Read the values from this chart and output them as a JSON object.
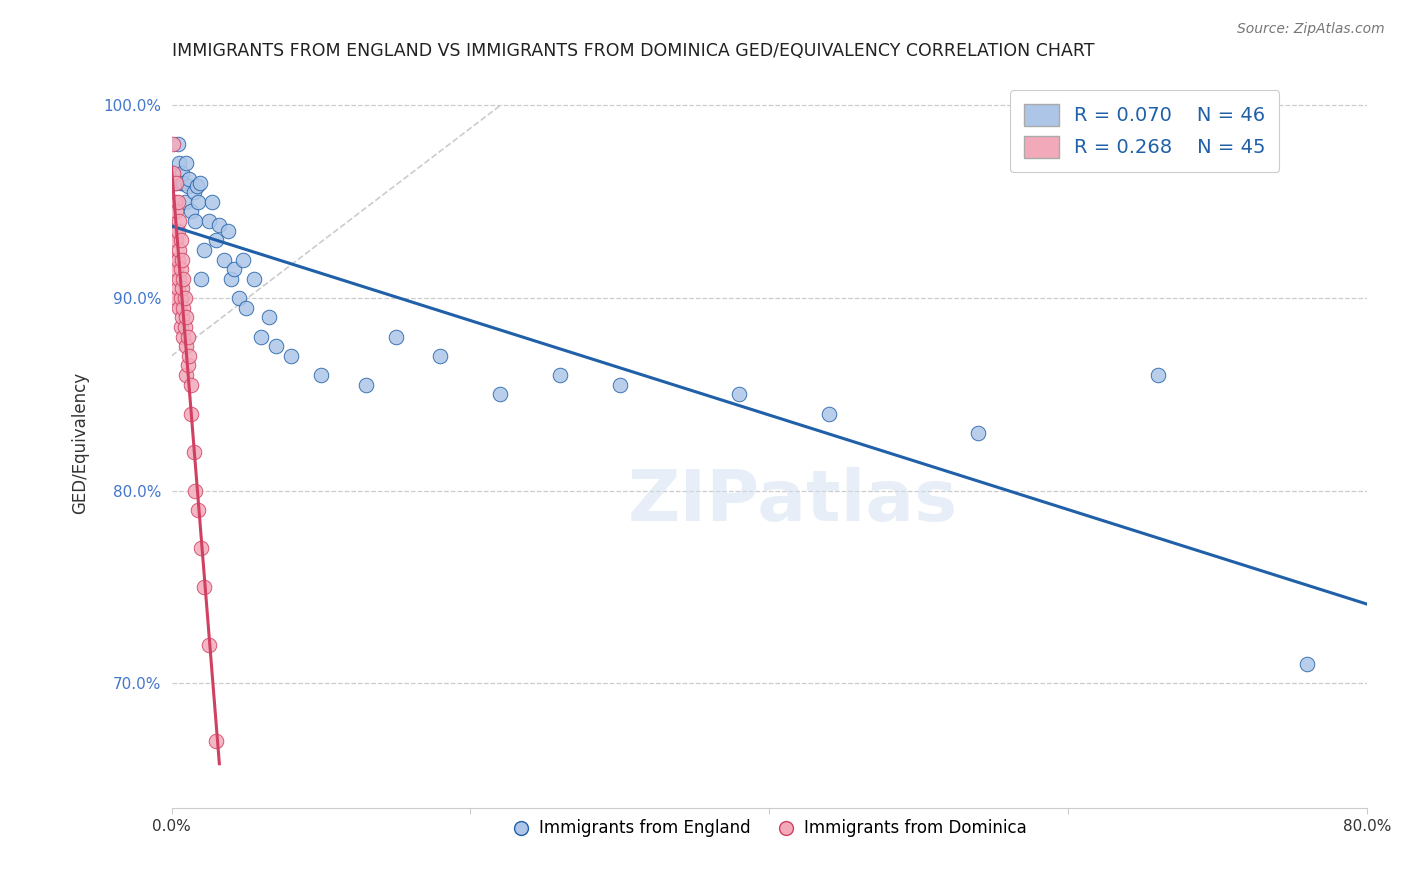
{
  "title": "IMMIGRANTS FROM ENGLAND VS IMMIGRANTS FROM DOMINICA GED/EQUIVALENCY CORRELATION CHART",
  "source": "Source: ZipAtlas.com",
  "ylabel": "GED/Equivalency",
  "xlim": [
    0.0,
    0.8
  ],
  "ylim": [
    0.635,
    1.015
  ],
  "xticks": [
    0.0,
    0.2,
    0.4,
    0.6,
    0.8
  ],
  "xticklabels": [
    "0.0%",
    "",
    "",
    "",
    "80.0%"
  ],
  "yticks": [
    0.7,
    0.8,
    0.9,
    1.0
  ],
  "yticklabels": [
    "70.0%",
    "80.0%",
    "90.0%",
    "100.0%"
  ],
  "legend_r_england": "R = 0.070",
  "legend_n_england": "N = 46",
  "legend_r_dominica": "R = 0.268",
  "legend_n_dominica": "N = 45",
  "england_color": "#adc6e8",
  "dominica_color": "#f2aabb",
  "england_line_color": "#2060a8",
  "dominica_line_color": "#d04060",
  "grid_color": "#cccccc",
  "background_color": "#ffffff",
  "england_x": [
    0.002,
    0.004,
    0.005,
    0.006,
    0.007,
    0.008,
    0.009,
    0.01,
    0.011,
    0.012,
    0.013,
    0.015,
    0.016,
    0.017,
    0.018,
    0.019,
    0.02,
    0.022,
    0.025,
    0.027,
    0.03,
    0.032,
    0.035,
    0.038,
    0.04,
    0.042,
    0.045,
    0.048,
    0.05,
    0.055,
    0.06,
    0.065,
    0.07,
    0.08,
    0.1,
    0.13,
    0.15,
    0.18,
    0.22,
    0.26,
    0.3,
    0.38,
    0.44,
    0.54,
    0.66,
    0.76
  ],
  "england_y": [
    0.96,
    0.98,
    0.97,
    0.96,
    0.965,
    0.96,
    0.95,
    0.97,
    0.958,
    0.962,
    0.945,
    0.955,
    0.94,
    0.958,
    0.95,
    0.96,
    0.91,
    0.925,
    0.94,
    0.95,
    0.93,
    0.938,
    0.92,
    0.935,
    0.91,
    0.915,
    0.9,
    0.92,
    0.895,
    0.91,
    0.88,
    0.89,
    0.875,
    0.87,
    0.86,
    0.855,
    0.88,
    0.87,
    0.85,
    0.86,
    0.855,
    0.85,
    0.84,
    0.83,
    0.86,
    0.71
  ],
  "dominica_x": [
    0.001,
    0.001,
    0.002,
    0.002,
    0.002,
    0.003,
    0.003,
    0.003,
    0.003,
    0.003,
    0.004,
    0.004,
    0.004,
    0.004,
    0.005,
    0.005,
    0.005,
    0.005,
    0.006,
    0.006,
    0.006,
    0.006,
    0.007,
    0.007,
    0.007,
    0.008,
    0.008,
    0.008,
    0.009,
    0.009,
    0.01,
    0.01,
    0.01,
    0.011,
    0.011,
    0.012,
    0.013,
    0.013,
    0.015,
    0.016,
    0.018,
    0.02,
    0.022,
    0.025,
    0.03
  ],
  "dominica_y": [
    0.98,
    0.965,
    0.95,
    0.935,
    0.92,
    0.96,
    0.945,
    0.93,
    0.915,
    0.9,
    0.95,
    0.935,
    0.92,
    0.905,
    0.94,
    0.925,
    0.91,
    0.895,
    0.93,
    0.915,
    0.9,
    0.885,
    0.92,
    0.905,
    0.89,
    0.91,
    0.895,
    0.88,
    0.9,
    0.885,
    0.89,
    0.875,
    0.86,
    0.88,
    0.865,
    0.87,
    0.855,
    0.84,
    0.82,
    0.8,
    0.79,
    0.77,
    0.75,
    0.72,
    0.67
  ],
  "ref_line_x": [
    0.0,
    0.22
  ],
  "ref_line_y": [
    0.87,
    1.0
  ]
}
